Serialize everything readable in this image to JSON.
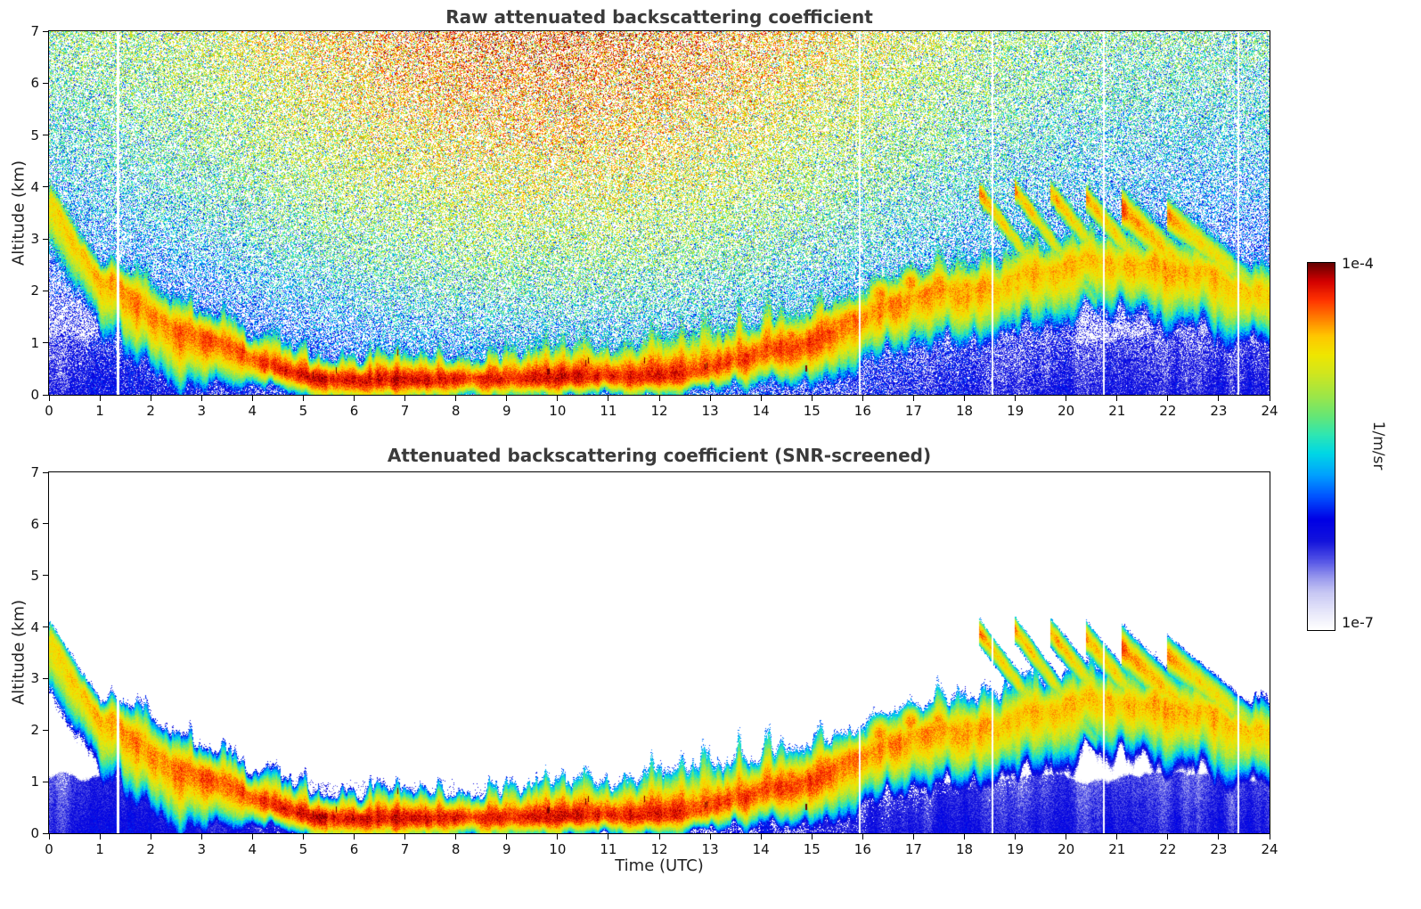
{
  "chart_data": {
    "type": "heatmap",
    "panels": [
      {
        "id": "raw",
        "title": "Raw attenuated backscattering coefficient",
        "noise": true
      },
      {
        "id": "screened",
        "title": "Attenuated backscattering coefficient (SNR-screened)",
        "noise": false
      }
    ],
    "xlabel": "Time (UTC)",
    "ylabel": "Altitude (km)",
    "xlim": [
      0,
      24
    ],
    "ylim": [
      0,
      7
    ],
    "xticks": [
      0,
      1,
      2,
      3,
      4,
      5,
      6,
      7,
      8,
      9,
      10,
      11,
      12,
      13,
      14,
      15,
      16,
      17,
      18,
      19,
      20,
      21,
      22,
      23,
      24
    ],
    "yticks": [
      0,
      1,
      2,
      3,
      4,
      5,
      6,
      7
    ],
    "colorbar": {
      "unit": "1/m/sr",
      "max_label": "1e-4",
      "min_label": "1e-7",
      "log10_range": [
        -7,
        -4
      ],
      "stops": [
        [
          0.0,
          "#ffffff"
        ],
        [
          0.05,
          "#e6e6fa"
        ],
        [
          0.1,
          "#c8c8f4"
        ],
        [
          0.14,
          "#9a9aee"
        ],
        [
          0.19,
          "#5050e6"
        ],
        [
          0.24,
          "#1414dc"
        ],
        [
          0.3,
          "#0000e6"
        ],
        [
          0.36,
          "#0050ff"
        ],
        [
          0.42,
          "#00a0ff"
        ],
        [
          0.48,
          "#00d8e6"
        ],
        [
          0.53,
          "#2ee6b4"
        ],
        [
          0.58,
          "#64e678"
        ],
        [
          0.64,
          "#a0e646"
        ],
        [
          0.7,
          "#d2e61e"
        ],
        [
          0.75,
          "#f0e600"
        ],
        [
          0.8,
          "#ffc800"
        ],
        [
          0.85,
          "#ff7d00"
        ],
        [
          0.9,
          "#ff3200"
        ],
        [
          0.95,
          "#d20000"
        ],
        [
          1.0,
          "#640000"
        ]
      ]
    },
    "model": {
      "band": {
        "t": [
          0,
          1,
          2,
          3,
          4,
          5,
          6,
          7,
          8,
          9,
          10,
          11,
          12,
          13,
          14,
          15,
          16,
          17,
          18,
          19,
          20,
          21,
          22,
          23,
          24
        ],
        "center_km": [
          3.7,
          2.3,
          1.55,
          1.15,
          0.7,
          0.35,
          0.3,
          0.3,
          0.3,
          0.3,
          0.32,
          0.35,
          0.35,
          0.5,
          0.8,
          1.0,
          1.5,
          1.9,
          2.0,
          2.3,
          2.5,
          2.5,
          2.4,
          2.2,
          2.0
        ],
        "log10_peak": [
          -4.7,
          -4.55,
          -4.45,
          -4.4,
          -4.3,
          -4.2,
          -4.2,
          -4.2,
          -4.25,
          -4.25,
          -4.2,
          -4.25,
          -4.2,
          -4.3,
          -4.35,
          -4.3,
          -4.45,
          -4.5,
          -4.55,
          -4.6,
          -4.6,
          -4.6,
          -4.55,
          -4.6,
          -4.7
        ],
        "plume_top_km": [
          0.6,
          0.9,
          1.0,
          0.9,
          0.9,
          0.9,
          0.8,
          0.8,
          0.8,
          0.85,
          1.0,
          1.2,
          1.2,
          1.3,
          1.3,
          1.3,
          1.1,
          1.0,
          1.2,
          1.3,
          1.3,
          1.2,
          1.1,
          0.9,
          0.8
        ]
      },
      "boundary_layer": {
        "height_km": 1.05,
        "log10": -6.25
      },
      "streaks": [
        {
          "t0": 0.0,
          "z0": 3.8,
          "slope": -1.6,
          "len": 1.35,
          "w": 0.3,
          "log10": -4.6
        },
        {
          "t0": 18.3,
          "z0": 3.9,
          "slope": -1.3,
          "len": 1.5,
          "w": 0.22,
          "log10": -4.5
        },
        {
          "t0": 19.0,
          "z0": 3.95,
          "slope": -1.35,
          "len": 1.6,
          "w": 0.22,
          "log10": -4.5
        },
        {
          "t0": 19.7,
          "z0": 3.9,
          "slope": -1.25,
          "len": 1.6,
          "w": 0.24,
          "log10": -4.5
        },
        {
          "t0": 20.4,
          "z0": 3.8,
          "slope": -1.2,
          "len": 1.7,
          "w": 0.26,
          "log10": -4.5
        },
        {
          "t0": 21.1,
          "z0": 3.6,
          "slope": -0.95,
          "len": 2.2,
          "w": 0.34,
          "log10": -4.4
        },
        {
          "t0": 22.0,
          "z0": 3.45,
          "slope": -0.8,
          "len": 2.3,
          "w": 0.3,
          "log10": -4.5
        }
      ],
      "blobs": [
        {
          "t": 14.6,
          "z": 1.1,
          "r": 0.28,
          "log10": -4.4
        },
        {
          "t": 15.3,
          "z": 1.35,
          "r": 0.3,
          "log10": -4.45
        },
        {
          "t": 16.35,
          "z": 1.9,
          "r": 0.35,
          "log10": -4.45
        },
        {
          "t": 16.95,
          "z": 2.15,
          "r": 0.3,
          "log10": -4.45
        },
        {
          "t": 17.5,
          "z": 2.2,
          "r": 0.3,
          "log10": -4.5
        },
        {
          "t": 18.05,
          "z": 2.1,
          "r": 0.28,
          "log10": -4.5
        }
      ],
      "gaps_t": [
        1.35,
        15.95,
        18.55,
        20.75,
        23.4
      ],
      "noise": {
        "sigma_max": 6e-05,
        "day_center": 10.0,
        "day_width": 5.5,
        "night_frac": 0.11
      },
      "screen_factor": 0.6
    }
  }
}
